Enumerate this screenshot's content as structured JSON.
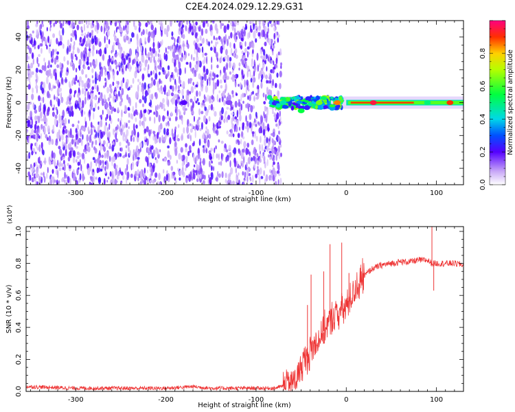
{
  "title": "C2E4.2024.029.12.29.G31",
  "chart_data": [
    {
      "type": "heatmap",
      "xlabel": "Height of straight line (km)",
      "ylabel": "Frequency (Hz)",
      "xlim": [
        -355,
        130
      ],
      "ylim": [
        -50,
        50
      ],
      "xticks": [
        -300,
        -200,
        -100,
        0,
        100
      ],
      "yticks": [
        -40,
        -20,
        0,
        20,
        40
      ],
      "noise_extent_km": [
        -355,
        -72
      ],
      "signal_start_km": -85,
      "signal_features": [
        {
          "x": -180,
          "y": 0,
          "amplitude": 0.2
        },
        {
          "x": -130,
          "y": 0,
          "amplitude": 0.15
        },
        {
          "x": -70,
          "y": 0,
          "amplitude": 0.45
        },
        {
          "x": -50,
          "y": -5,
          "amplitude": 0.55
        },
        {
          "x": -30,
          "y": 0,
          "amplitude": 0.65
        },
        {
          "x": -10,
          "y": 0,
          "amplitude": 0.85
        },
        {
          "x": 30,
          "y": 0,
          "amplitude": 0.95
        },
        {
          "x": 90,
          "y": 0,
          "amplitude": 0.5
        },
        {
          "x": 115,
          "y": 0,
          "amplitude": 0.9
        }
      ],
      "colorbar": {
        "label": "Normalized spectral amplitude",
        "range": [
          0,
          1
        ],
        "ticks": [
          0.0,
          0.2,
          0.4,
          0.6,
          0.8
        ]
      },
      "grid": false
    },
    {
      "type": "line",
      "xlabel": "Height of straight line (km)",
      "ylabel": "SNR (10 * v/v)",
      "scale_label": "(x10⁴)",
      "xlim": [
        -355,
        130
      ],
      "ylim": [
        0,
        1.03
      ],
      "xticks": [
        -300,
        -200,
        -100,
        0,
        100
      ],
      "yticks": [
        0.0,
        0.2,
        0.4,
        0.6,
        0.8,
        1.0
      ],
      "color": "#ee3333",
      "x": [
        -355,
        -300,
        -250,
        -200,
        -170,
        -150,
        -100,
        -80,
        -65,
        -55,
        -48,
        -42,
        -38,
        -34,
        -30,
        -26,
        -22,
        -18,
        -14,
        -10,
        -6,
        -2,
        2,
        6,
        10,
        15,
        20,
        25,
        30,
        35,
        40,
        50,
        60,
        70,
        80,
        90,
        95,
        100,
        110,
        120,
        130
      ],
      "y": [
        0.03,
        0.02,
        0.02,
        0.02,
        0.03,
        0.02,
        0.02,
        0.02,
        0.04,
        0.08,
        0.18,
        0.22,
        0.27,
        0.3,
        0.34,
        0.37,
        0.4,
        0.44,
        0.47,
        0.49,
        0.5,
        0.52,
        0.55,
        0.6,
        0.64,
        0.68,
        0.72,
        0.75,
        0.77,
        0.78,
        0.79,
        0.8,
        0.81,
        0.81,
        0.82,
        0.82,
        0.8,
        0.8,
        0.8,
        0.8,
        0.79
      ],
      "spikes": [
        {
          "x": -43,
          "y": 0.54
        },
        {
          "x": -39,
          "y": 0.73
        },
        {
          "x": -25,
          "y": 0.75
        },
        {
          "x": -18,
          "y": 0.92
        },
        {
          "x": -5,
          "y": 0.93
        },
        {
          "x": 3,
          "y": 0.74
        },
        {
          "x": 95,
          "y": 1.03
        },
        {
          "x": 97,
          "y": 0.63
        }
      ],
      "grid": false
    }
  ]
}
